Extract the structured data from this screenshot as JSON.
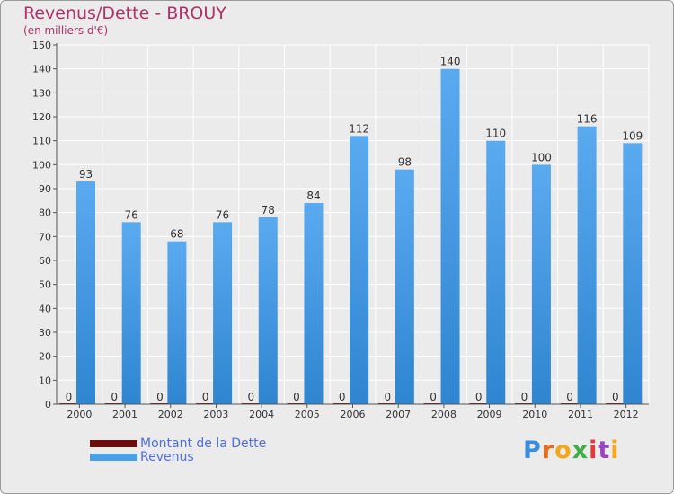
{
  "chart_data": {
    "type": "bar",
    "title": "Revenus/Dette - BROUY",
    "subtitle": "(en milliers d'€)",
    "xlabel": "",
    "ylabel": "",
    "ylim": [
      0,
      150
    ],
    "yticks": [
      0,
      10,
      20,
      30,
      40,
      50,
      60,
      70,
      80,
      90,
      100,
      110,
      120,
      130,
      140,
      150
    ],
    "grid": true,
    "categories": [
      "2000",
      "2001",
      "2002",
      "2003",
      "2004",
      "2005",
      "2006",
      "2007",
      "2008",
      "2009",
      "2010",
      "2011",
      "2012"
    ],
    "series": [
      {
        "name": "Montant de la Dette",
        "color": "#6b0d0d",
        "values": [
          0,
          0,
          0,
          0,
          0,
          0,
          0,
          0,
          0,
          0,
          0,
          0,
          0
        ]
      },
      {
        "name": "Revenus",
        "color": "#4a9fe6",
        "values": [
          93,
          76,
          68,
          76,
          78,
          84,
          112,
          98,
          140,
          110,
          100,
          116,
          109
        ]
      }
    ],
    "legend_position": "bottom-left"
  },
  "logo": {
    "letters": [
      "P",
      "r",
      "o",
      "x",
      "i",
      "t",
      "i"
    ],
    "colors": [
      "#3a8ee0",
      "#e86a1c",
      "#f2a81d",
      "#3fae49",
      "#e03a3a",
      "#9c45c2",
      "#f2a81d"
    ]
  }
}
